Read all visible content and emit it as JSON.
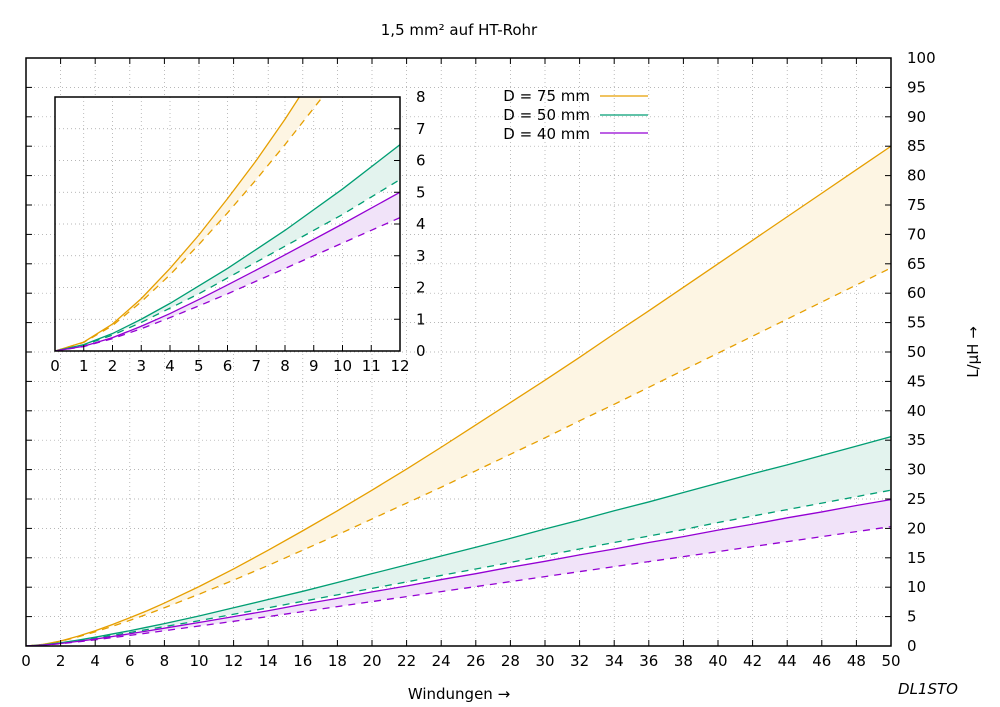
{
  "chart_data": {
    "type": "line",
    "title": "1,5 mm² auf HT-Rohr",
    "xlabel": "Windungen →",
    "ylabel": "L/µH →",
    "signature": "DL1STO",
    "xlim": [
      0,
      50
    ],
    "ylim": [
      0,
      100
    ],
    "x_ticks": [
      0,
      2,
      4,
      6,
      8,
      10,
      12,
      14,
      16,
      18,
      20,
      22,
      24,
      26,
      28,
      30,
      32,
      34,
      36,
      38,
      40,
      42,
      44,
      46,
      48,
      50
    ],
    "y_ticks": [
      0,
      5,
      10,
      15,
      20,
      25,
      30,
      35,
      40,
      45,
      50,
      55,
      60,
      65,
      70,
      75,
      80,
      85,
      90,
      95,
      100
    ],
    "grid": true,
    "legend_position": "top-center",
    "x": [
      0,
      1,
      2,
      3,
      4,
      5,
      6,
      7,
      8,
      10,
      12,
      14,
      16,
      18,
      20,
      22,
      24,
      26,
      28,
      30,
      32,
      34,
      36,
      38,
      40,
      42,
      44,
      46,
      48,
      50
    ],
    "series": [
      {
        "name": "D = 75 mm",
        "color": "#e69f00",
        "fill": "#fdf5e3",
        "upper": [
          0,
          0.28,
          0.85,
          1.65,
          2.6,
          3.65,
          4.8,
          6.0,
          7.3,
          10.1,
          13.1,
          16.3,
          19.6,
          23.0,
          26.5,
          30.1,
          33.8,
          37.6,
          41.4,
          45.2,
          49.1,
          53.1,
          57.0,
          61.0,
          65.0,
          69.0,
          73.0,
          77.0,
          81.0,
          85.0
        ],
        "lower": [
          0,
          0.27,
          0.8,
          1.55,
          2.4,
          3.35,
          4.35,
          5.4,
          6.5,
          8.8,
          11.2,
          13.7,
          16.3,
          18.9,
          21.6,
          24.3,
          27.0,
          29.8,
          32.6,
          35.4,
          38.3,
          41.1,
          44.0,
          46.9,
          49.8,
          52.7,
          55.6,
          58.5,
          61.4,
          64.3
        ]
      },
      {
        "name": "D = 50 mm",
        "color": "#009e73",
        "fill": "#e3f3ee",
        "upper": [
          0,
          0.2,
          0.55,
          1.0,
          1.5,
          2.05,
          2.6,
          3.2,
          3.8,
          5.1,
          6.5,
          7.9,
          9.3,
          10.8,
          12.3,
          13.8,
          15.3,
          16.8,
          18.3,
          19.9,
          21.4,
          23.0,
          24.5,
          26.1,
          27.7,
          29.3,
          30.8,
          32.4,
          34.0,
          35.6
        ],
        "lower": [
          0,
          0.19,
          0.5,
          0.9,
          1.35,
          1.8,
          2.3,
          2.8,
          3.3,
          4.3,
          5.4,
          6.5,
          7.6,
          8.7,
          9.8,
          10.9,
          12.0,
          13.1,
          14.2,
          15.4,
          16.5,
          17.6,
          18.7,
          19.8,
          21.0,
          22.1,
          23.2,
          24.3,
          25.4,
          26.5
        ]
      },
      {
        "name": "D = 40 mm",
        "color": "#9400d3",
        "fill": "#f1e3f9",
        "upper": [
          0,
          0.15,
          0.42,
          0.78,
          1.18,
          1.62,
          2.08,
          2.55,
          3.03,
          4.0,
          5.0,
          6.0,
          7.1,
          8.1,
          9.2,
          10.2,
          11.3,
          12.3,
          13.4,
          14.4,
          15.5,
          16.5,
          17.6,
          18.6,
          19.7,
          20.7,
          21.8,
          22.8,
          23.9,
          24.9
        ],
        "lower": [
          0,
          0.14,
          0.39,
          0.7,
          1.05,
          1.42,
          1.8,
          2.2,
          2.6,
          3.4,
          4.2,
          5.0,
          5.85,
          6.7,
          7.55,
          8.4,
          9.25,
          10.1,
          10.95,
          11.8,
          12.65,
          13.5,
          14.35,
          15.2,
          16.05,
          16.9,
          17.75,
          18.6,
          19.45,
          20.3
        ]
      }
    ],
    "inset": {
      "xlim": [
        0,
        12
      ],
      "ylim": [
        0,
        8
      ],
      "x_ticks": [
        0,
        1,
        2,
        3,
        4,
        5,
        6,
        7,
        8,
        9,
        10,
        11,
        12
      ],
      "y_ticks": [
        0,
        1,
        2,
        3,
        4,
        5,
        6,
        7,
        8
      ]
    }
  }
}
